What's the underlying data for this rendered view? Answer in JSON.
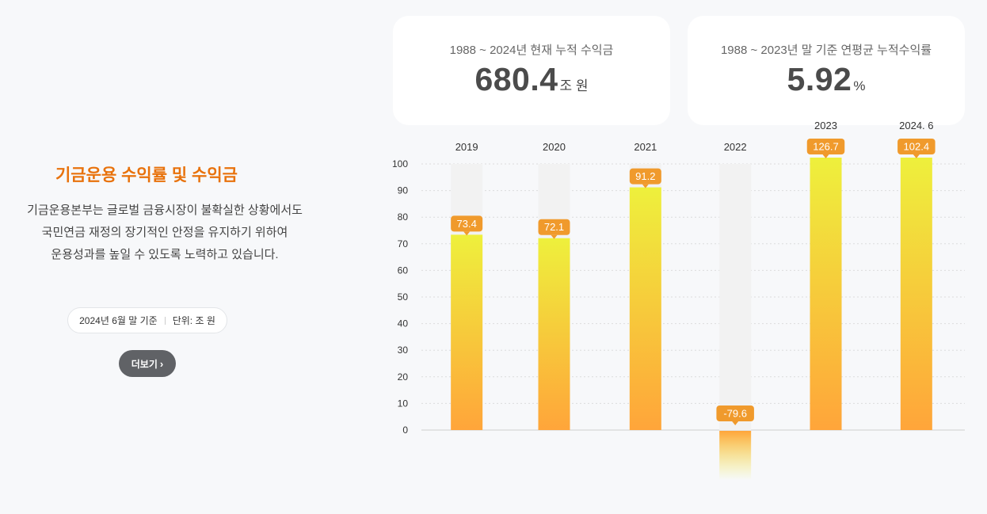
{
  "section": {
    "title": "기금운용 수익률 및 수익금",
    "desc": [
      "기금운용본부는  글로벌 금융시장이 불확실한 상황에서도",
      "국민연금 재정의 장기적인 안정을 유지하기 위하여",
      "운용성과를 높일 수 있도록 노력하고 있습니다."
    ],
    "basis": "2024년 6월 말 기준",
    "unit": "단위: 조 원",
    "more_label": "더보기",
    "more_icon": "chevron-right-icon"
  },
  "cards": [
    {
      "label": "1988 ~ 2024년 현재 누적 수익금",
      "value": "680.4",
      "unit": "조 원"
    },
    {
      "label": "1988 ~ 2023년 말 기준 연평균 누적수익률",
      "value": "5.92",
      "unit": "%"
    }
  ],
  "colors": {
    "accent": "#e8720c",
    "bar_top": "#eef03c",
    "bar_bottom": "#ffa53a",
    "badge": "#f09a2c",
    "track": "#f2f2f2"
  },
  "chart_data": {
    "type": "bar",
    "categories": [
      "2019",
      "2020",
      "2021",
      "2022",
      "2023",
      "2024. 6"
    ],
    "values": [
      73.4,
      72.1,
      91.2,
      -79.6,
      126.7,
      102.4
    ],
    "data_labels": [
      "73.4",
      "72.1",
      "91.2",
      "-79.6",
      "126.7",
      "102.4"
    ],
    "yticks": [
      0,
      10,
      20,
      30,
      40,
      50,
      60,
      70,
      80,
      90,
      100
    ],
    "ylim": [
      0,
      100
    ],
    "grid": true,
    "title": "",
    "xlabel": "",
    "ylabel": ""
  }
}
